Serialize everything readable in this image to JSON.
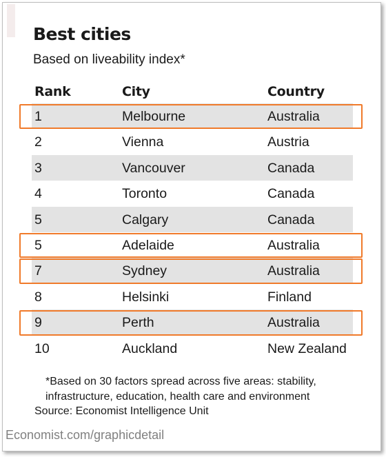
{
  "title": "Best cities",
  "subtitle": "Based on liveability index*",
  "columns": [
    "Rank",
    "City",
    "Country"
  ],
  "rows": [
    {
      "rank": "1",
      "city": "Melbourne",
      "country": "Australia",
      "highlighted": true
    },
    {
      "rank": "2",
      "city": "Vienna",
      "country": "Austria",
      "highlighted": false
    },
    {
      "rank": "3",
      "city": "Vancouver",
      "country": "Canada",
      "highlighted": false
    },
    {
      "rank": "4",
      "city": "Toronto",
      "country": "Canada",
      "highlighted": false
    },
    {
      "rank": "5",
      "city": "Calgary",
      "country": "Canada",
      "highlighted": false
    },
    {
      "rank": "5",
      "city": "Adelaide",
      "country": "Australia",
      "highlighted": true
    },
    {
      "rank": "7",
      "city": "Sydney",
      "country": "Australia",
      "highlighted": true
    },
    {
      "rank": "8",
      "city": "Helsinki",
      "country": "Finland",
      "highlighted": false
    },
    {
      "rank": "9",
      "city": "Perth",
      "country": "Australia",
      "highlighted": true
    },
    {
      "rank": "10",
      "city": "Auckland",
      "country": "New Zealand",
      "highlighted": false
    }
  ],
  "footnote": "*Based on 30 factors spread across five areas: stability, infrastructure, education, health care and environment",
  "source": "Source: Economist Intelligence Unit",
  "credit": "Economist.com/graphicdetail",
  "colors": {
    "highlight": "#f07a2a",
    "row_shade": "#e3e3e3"
  }
}
